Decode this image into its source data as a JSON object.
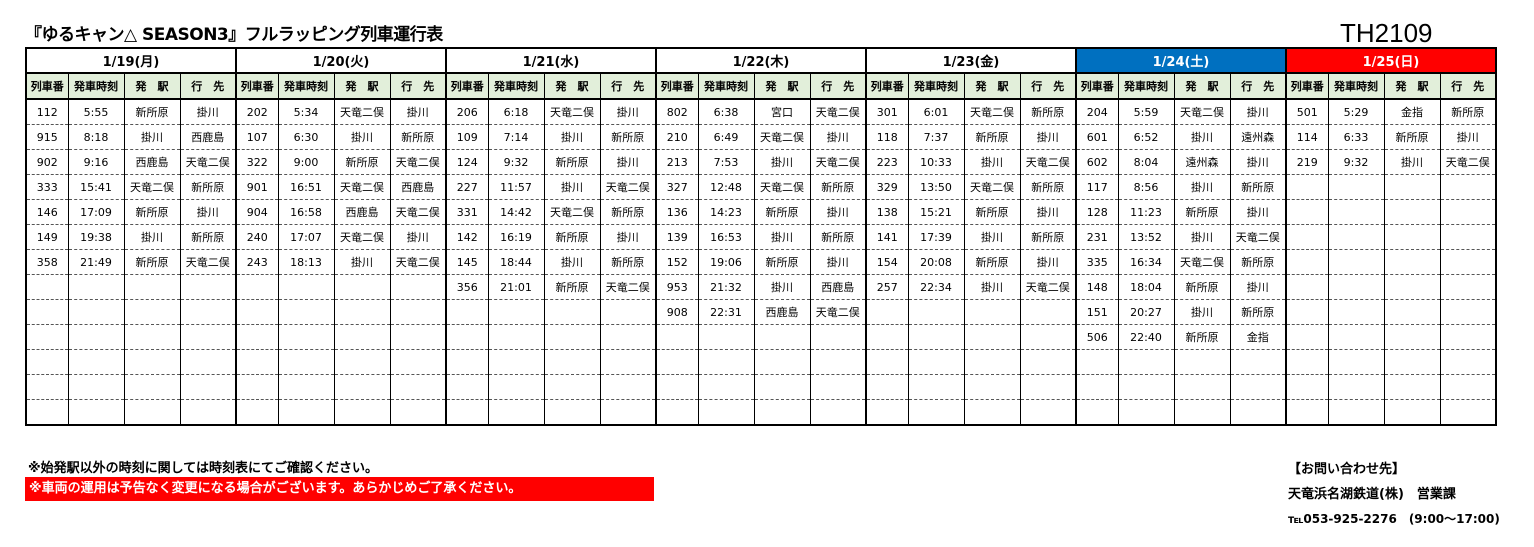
{
  "title": "『ゆるキャン△ SEASON3』フルラッピング列車運行表",
  "code": "TH2109",
  "columns": [
    "列車番",
    "発車時刻",
    "発　駅",
    "行　先"
  ],
  "colors": {
    "saturday": "#0070c0",
    "sunday": "#ff0000",
    "header_bg": "#e2efda"
  },
  "days": [
    {
      "label": "1/19(月)",
      "type": "weekday",
      "rows": [
        [
          "112",
          "5:55",
          "新所原",
          "掛川"
        ],
        [
          "915",
          "8:18",
          "掛川",
          "西鹿島"
        ],
        [
          "902",
          "9:16",
          "西鹿島",
          "天竜二俣"
        ],
        [
          "333",
          "15:41",
          "天竜二俣",
          "新所原"
        ],
        [
          "146",
          "17:09",
          "新所原",
          "掛川"
        ],
        [
          "149",
          "19:38",
          "掛川",
          "新所原"
        ],
        [
          "358",
          "21:49",
          "新所原",
          "天竜二俣"
        ]
      ]
    },
    {
      "label": "1/20(火)",
      "type": "weekday",
      "rows": [
        [
          "202",
          "5:34",
          "天竜二俣",
          "掛川"
        ],
        [
          "107",
          "6:30",
          "掛川",
          "新所原"
        ],
        [
          "322",
          "9:00",
          "新所原",
          "天竜二俣"
        ],
        [
          "901",
          "16:51",
          "天竜二俣",
          "西鹿島"
        ],
        [
          "904",
          "16:58",
          "西鹿島",
          "天竜二俣"
        ],
        [
          "240",
          "17:07",
          "天竜二俣",
          "掛川"
        ],
        [
          "243",
          "18:13",
          "掛川",
          "天竜二俣"
        ]
      ]
    },
    {
      "label": "1/21(水)",
      "type": "weekday",
      "rows": [
        [
          "206",
          "6:18",
          "天竜二俣",
          "掛川"
        ],
        [
          "109",
          "7:14",
          "掛川",
          "新所原"
        ],
        [
          "124",
          "9:32",
          "新所原",
          "掛川"
        ],
        [
          "227",
          "11:57",
          "掛川",
          "天竜二俣"
        ],
        [
          "331",
          "14:42",
          "天竜二俣",
          "新所原"
        ],
        [
          "142",
          "16:19",
          "新所原",
          "掛川"
        ],
        [
          "145",
          "18:44",
          "掛川",
          "新所原"
        ],
        [
          "356",
          "21:01",
          "新所原",
          "天竜二俣"
        ]
      ]
    },
    {
      "label": "1/22(木)",
      "type": "weekday",
      "rows": [
        [
          "802",
          "6:38",
          "宮口",
          "天竜二俣"
        ],
        [
          "210",
          "6:49",
          "天竜二俣",
          "掛川"
        ],
        [
          "213",
          "7:53",
          "掛川",
          "天竜二俣"
        ],
        [
          "327",
          "12:48",
          "天竜二俣",
          "新所原"
        ],
        [
          "136",
          "14:23",
          "新所原",
          "掛川"
        ],
        [
          "139",
          "16:53",
          "掛川",
          "新所原"
        ],
        [
          "152",
          "19:06",
          "新所原",
          "掛川"
        ],
        [
          "953",
          "21:32",
          "掛川",
          "西鹿島"
        ],
        [
          "908",
          "22:31",
          "西鹿島",
          "天竜二俣"
        ]
      ]
    },
    {
      "label": "1/23(金)",
      "type": "weekday",
      "rows": [
        [
          "301",
          "6:01",
          "天竜二俣",
          "新所原"
        ],
        [
          "118",
          "7:37",
          "新所原",
          "掛川"
        ],
        [
          "223",
          "10:33",
          "掛川",
          "天竜二俣"
        ],
        [
          "329",
          "13:50",
          "天竜二俣",
          "新所原"
        ],
        [
          "138",
          "15:21",
          "新所原",
          "掛川"
        ],
        [
          "141",
          "17:39",
          "掛川",
          "新所原"
        ],
        [
          "154",
          "20:08",
          "新所原",
          "掛川"
        ],
        [
          "257",
          "22:34",
          "掛川",
          "天竜二俣"
        ]
      ]
    },
    {
      "label": "1/24(土)",
      "type": "sat",
      "rows": [
        [
          "204",
          "5:59",
          "天竜二俣",
          "掛川"
        ],
        [
          "601",
          "6:52",
          "掛川",
          "遠州森"
        ],
        [
          "602",
          "8:04",
          "遠州森",
          "掛川"
        ],
        [
          "117",
          "8:56",
          "掛川",
          "新所原"
        ],
        [
          "128",
          "11:23",
          "新所原",
          "掛川"
        ],
        [
          "231",
          "13:52",
          "掛川",
          "天竜二俣"
        ],
        [
          "335",
          "16:34",
          "天竜二俣",
          "新所原"
        ],
        [
          "148",
          "18:04",
          "新所原",
          "掛川"
        ],
        [
          "151",
          "20:27",
          "掛川",
          "新所原"
        ],
        [
          "506",
          "22:40",
          "新所原",
          "金指"
        ]
      ]
    },
    {
      "label": "1/25(日)",
      "type": "sun",
      "rows": [
        [
          "501",
          "5:29",
          "金指",
          "新所原"
        ],
        [
          "114",
          "6:33",
          "新所原",
          "掛川"
        ],
        [
          "219",
          "9:32",
          "掛川",
          "天竜二俣"
        ]
      ]
    }
  ],
  "footer": {
    "note": "※始発駅以外の時刻に関しては時刻表にてご確認ください。",
    "warning": "※車両の運用は予告なく変更になる場合がございます。あらかじめご了承ください。",
    "contact_heading": "【お問い合わせ先】",
    "company": "天竜浜名湖鉄道(株)　営業課",
    "phone": "℡053-925-2276　(9:00～17:00)"
  }
}
